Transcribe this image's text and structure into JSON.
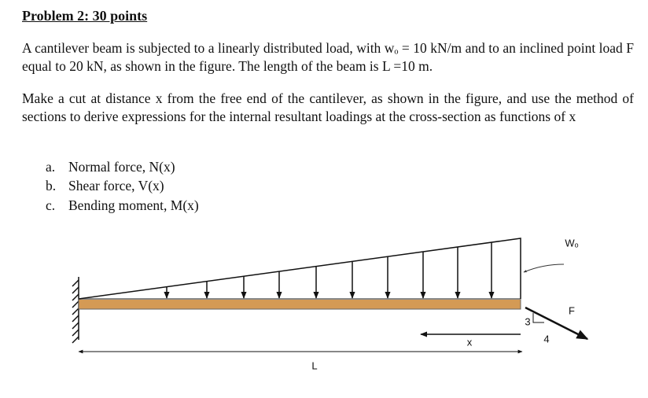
{
  "header": {
    "title": "Problem 2: 30 points"
  },
  "paragraphs": [
    "A cantilever beam is subjected to a linearly distributed load, with wₒ = 10 kN/m and to an inclined point load F equal to 20 kN, as shown in the figure. The length of the beam is L =10 m.",
    "Make a cut at distance x from the free end of the cantilever, as shown in the figure, and use the method of sections to derive expressions for the internal resultant loadings at the cross-section as functions of x"
  ],
  "list": [
    {
      "marker": "a.",
      "text": "Normal force, N(x)"
    },
    {
      "marker": "b.",
      "text": "Shear force, V(x)"
    },
    {
      "marker": "c.",
      "text": "Bending moment, M(x)"
    }
  ],
  "figure": {
    "load_label": "Wₒ",
    "force_label": "F",
    "slope_rise": "3",
    "slope_run": "4",
    "cut_label": "x",
    "length_label": "L"
  }
}
